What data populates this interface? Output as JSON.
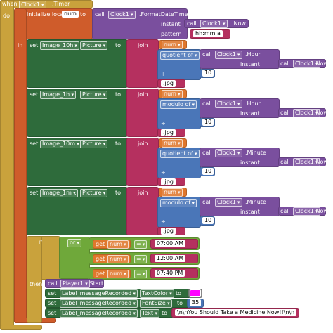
{
  "event": {
    "when": "when",
    "component": "Clock1",
    "event": ".Timer",
    "do": "do"
  },
  "local": {
    "label": "initialize local",
    "name": "num",
    "to": "to",
    "in": "in",
    "value": {
      "call": "call",
      "component": "Clock1",
      "method": ".FormatDateTime",
      "instant_label": "instant",
      "instant": {
        "call": "call",
        "component": "Clock1",
        "method": ".Now"
      },
      "pattern_label": "pattern",
      "pattern": "hh:mm a"
    }
  },
  "sets": [
    {
      "set": "set",
      "component": "Image_10h",
      "dot": ".",
      "property": "Picture",
      "to": "to",
      "join": "join",
      "var": "num",
      "op": "quotient of",
      "call": "call",
      "call_component": "Clock1",
      "method": ".Hour",
      "instant_label": "instant",
      "now_call": "call",
      "now_component": "Clock1",
      "now_method": ".Now",
      "divide": "÷",
      "divisor": 10,
      "suffix": ".jpg"
    },
    {
      "set": "set",
      "component": "Image_1h",
      "dot": ".",
      "property": "Picture",
      "to": "to",
      "join": "join",
      "var": "num",
      "op": "modulo of",
      "call": "call",
      "call_component": "Clock1",
      "method": ".Hour",
      "instant_label": "instant",
      "now_call": "call",
      "now_component": "Clock1",
      "now_method": ".Now",
      "divide": "÷",
      "divisor": 10,
      "suffix": ".jpg"
    },
    {
      "set": "set",
      "component": "Image_10m",
      "dot": ".",
      "property": "Picture",
      "to": "to",
      "join": "join",
      "var": "num",
      "op": "quotient of",
      "call": "call",
      "call_component": "Clock1",
      "method": ".Minute",
      "instant_label": "instant",
      "now_call": "call",
      "now_component": "Clock1",
      "now_method": ".Now",
      "divide": "÷",
      "divisor": 10,
      "suffix": ".jpg"
    },
    {
      "set": "set",
      "component": "Image_1m",
      "dot": ".",
      "property": "Picture",
      "to": "to",
      "join": "join",
      "var": "num",
      "op": "modulo of",
      "call": "call",
      "call_component": "Clock1",
      "method": ".Minute",
      "instant_label": "instant",
      "now_call": "call",
      "now_component": "Clock1",
      "now_method": ".Now",
      "divide": "÷",
      "divisor": 10,
      "suffix": ".jpg"
    }
  ],
  "if_block": {
    "if": "if",
    "or": "or",
    "conditions": [
      {
        "get": "get",
        "var": "num",
        "op": "=",
        "value": "07:00 AM"
      },
      {
        "get": "get",
        "var": "num",
        "op": "=",
        "value": "12:00 AM"
      },
      {
        "get": "get",
        "var": "num",
        "op": "=",
        "value": "07:40 PM"
      }
    ],
    "then": "then",
    "player": {
      "call": "call",
      "component": "Player1",
      "method": ".Start"
    },
    "label_sets": [
      {
        "set": "set",
        "component": "Label_messageRecorded",
        "dot": ".",
        "property": "TextColor",
        "to": "to",
        "color": "#ff00ff"
      },
      {
        "set": "set",
        "component": "Label_messageRecorded",
        "dot": ".",
        "property": "FontSize",
        "to": "to",
        "value": 35
      },
      {
        "set": "set",
        "component": "Label_messageRecorded",
        "dot": ".",
        "property": "Text",
        "to": "to",
        "value": "\\n\\nYou Should Take a Medicine Now!!\\n\\n"
      }
    ]
  }
}
